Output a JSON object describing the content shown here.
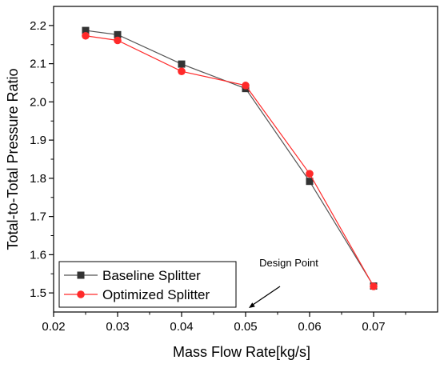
{
  "chart_data": {
    "type": "line",
    "title": "",
    "xlabel": "Mass Flow Rate[kg/s]",
    "ylabel": "Total-to-Total Pressure Ratio",
    "xlim": [
      0.02,
      0.08
    ],
    "ylim": [
      1.45,
      2.25
    ],
    "xticks": [
      0.02,
      0.03,
      0.04,
      0.05,
      0.06,
      0.07
    ],
    "yticks": [
      1.5,
      1.6,
      1.7,
      1.8,
      1.9,
      2.0,
      2.1,
      2.2
    ],
    "xtick_labels": [
      "0.02",
      "0.03",
      "0.04",
      "0.05",
      "0.06",
      "0.07"
    ],
    "ytick_labels": [
      "1.5",
      "1.6",
      "1.7",
      "1.8",
      "1.9",
      "2.0",
      "2.1",
      "2.2"
    ],
    "grid": false,
    "legend_position": "bottom-left",
    "x": [
      0.025,
      0.03,
      0.04,
      0.05,
      0.06,
      0.07
    ],
    "series": [
      {
        "name": "Baseline Splitter",
        "values": [
          2.187,
          2.176,
          2.099,
          2.035,
          1.792,
          1.518
        ],
        "color": "#333333",
        "line_color": "#555555",
        "marker": "square"
      },
      {
        "name": "Optimized Splitter",
        "values": [
          2.173,
          2.161,
          2.08,
          2.043,
          1.812,
          1.517
        ],
        "color": "#ff2a2a",
        "line_color": "#ff2a2a",
        "marker": "circle"
      }
    ],
    "annotations": [
      {
        "text": "Design Point",
        "x": 0.05,
        "y": 1.45
      }
    ]
  }
}
